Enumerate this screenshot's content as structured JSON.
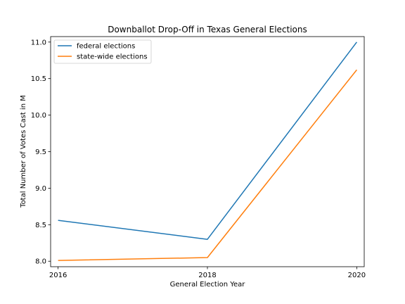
{
  "chart_data": {
    "type": "line",
    "title": "Downballot Drop-Off in Texas General Elections",
    "xlabel": "General Election Year",
    "ylabel": "Total Number of Votes Cast in M",
    "x": [
      2016,
      2018,
      2020
    ],
    "xticks": [
      "2016",
      "2018",
      "2020"
    ],
    "yticks": [
      "8.0",
      "8.5",
      "9.0",
      "9.5",
      "10.0",
      "10.5",
      "11.0"
    ],
    "ylim": [
      7.925,
      11.075
    ],
    "xlim": [
      2015.9,
      2020.1
    ],
    "grid": false,
    "legend_position": "top-left",
    "series": [
      {
        "name": "federal elections",
        "color": "#1f77b4",
        "values": [
          8.56,
          8.3,
          11.0
        ]
      },
      {
        "name": "state-wide elections",
        "color": "#ff7f0e",
        "values": [
          8.01,
          8.05,
          10.62
        ]
      }
    ]
  }
}
